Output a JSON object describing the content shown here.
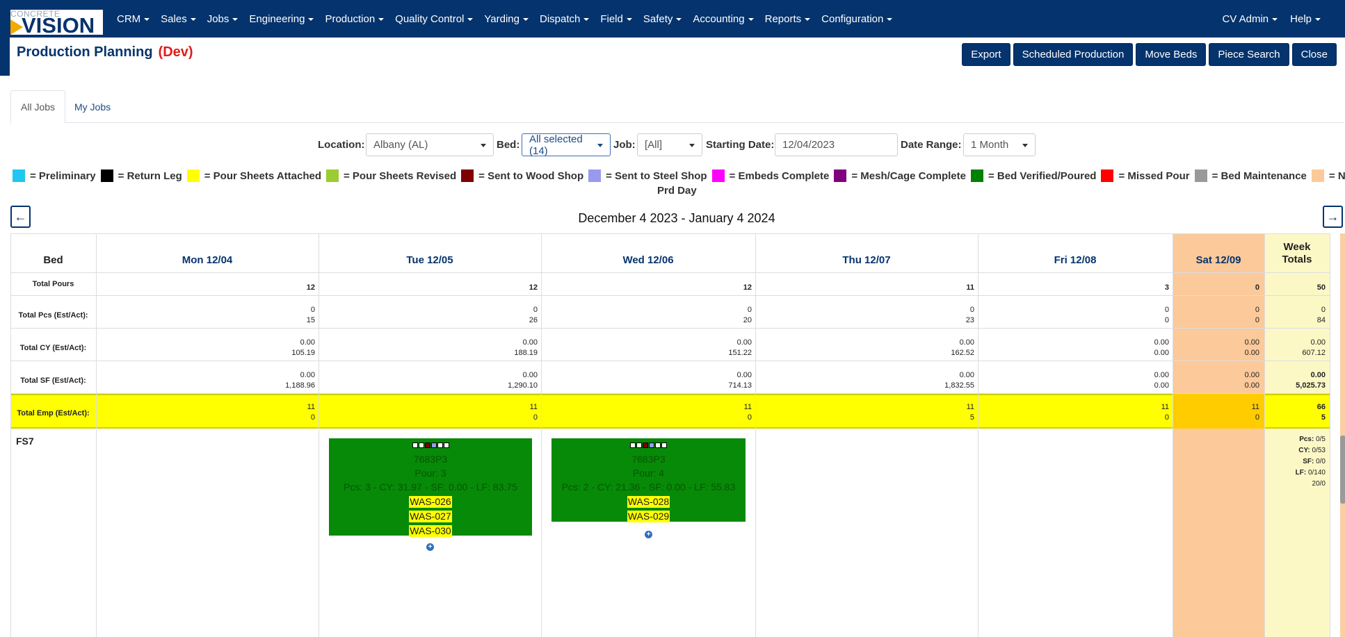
{
  "nav": {
    "logo_top": "CONCRETE",
    "logo_bottom": "VISION",
    "menu": [
      "CRM",
      "Sales",
      "Jobs",
      "Engineering",
      "Production",
      "Quality Control",
      "Yarding",
      "Dispatch",
      "Field",
      "Safety",
      "Accounting",
      "Reports",
      "Configuration"
    ],
    "right": [
      "CV Admin",
      "Help"
    ]
  },
  "header": {
    "title": "Production Planning",
    "env": "(Dev)",
    "buttons": [
      "Export",
      "Scheduled Production",
      "Move Beds",
      "Piece Search",
      "Close"
    ]
  },
  "tabs": [
    "All Jobs",
    "My Jobs"
  ],
  "filters": {
    "location_label": "Location:",
    "location_value": "Albany (AL)",
    "bed_label": "Bed:",
    "bed_value": "All selected (14)",
    "job_label": "Job:",
    "job_value": "[All]",
    "start_label": "Starting Date:",
    "start_value": "12/04/2023",
    "range_label": "Date Range:",
    "range_value": "1 Month"
  },
  "legend": [
    {
      "label": "= Preliminary",
      "color": "#1ec8ef"
    },
    {
      "label": "= Return Leg",
      "color": "#000000"
    },
    {
      "label": "= Pour Sheets Attached",
      "color": "#ffff00"
    },
    {
      "label": "= Pour Sheets Revised",
      "color": "#9acd32"
    },
    {
      "label": "= Sent to Wood Shop",
      "color": "#800000"
    },
    {
      "label": "= Sent to Steel Shop",
      "color": "#9999ee"
    },
    {
      "label": "= Embeds Complete",
      "color": "#ff00ff"
    },
    {
      "label": "= Mesh/Cage Complete",
      "color": "#800080"
    },
    {
      "label": "= Bed Verified/Poured",
      "color": "#008000"
    },
    {
      "label": "= Missed Pour",
      "color": "#ff0000"
    },
    {
      "label": "= Bed Maintenance",
      "color": "#999999"
    },
    {
      "label": "= Non",
      "color": "#fcc99a"
    }
  ],
  "legend_wrap": "Prd Day",
  "range_title": "December 4 2023 - January 4 2024",
  "grid": {
    "bed_header": "Bed",
    "days": [
      "Mon 12/04",
      "Tue 12/05",
      "Wed 12/06",
      "Thu 12/07",
      "Fri 12/08",
      "Sat 12/09"
    ],
    "week_totals_header": [
      "Week",
      "Totals"
    ],
    "rows": [
      {
        "label": "Total Pours",
        "values": [
          [
            "12"
          ],
          [
            "12"
          ],
          [
            "12"
          ],
          [
            "11"
          ],
          [
            "3"
          ],
          [
            "0"
          ]
        ],
        "total": [
          "50"
        ]
      },
      {
        "label": "Total Pcs (Est/Act):",
        "values": [
          [
            "0",
            "15"
          ],
          [
            "0",
            "26"
          ],
          [
            "0",
            "20"
          ],
          [
            "0",
            "23"
          ],
          [
            "0",
            "0"
          ],
          [
            "0",
            "0"
          ]
        ],
        "total": [
          "0",
          "84"
        ]
      },
      {
        "label": "Total CY (Est/Act):",
        "values": [
          [
            "0.00",
            "105.19"
          ],
          [
            "0.00",
            "188.19"
          ],
          [
            "0.00",
            "151.22"
          ],
          [
            "0.00",
            "162.52"
          ],
          [
            "0.00",
            "0.00"
          ],
          [
            "0.00",
            "0.00"
          ]
        ],
        "total": [
          "0.00",
          "607.12"
        ]
      },
      {
        "label": "Total SF (Est/Act):",
        "values": [
          [
            "0.00",
            "1,188.96"
          ],
          [
            "0.00",
            "1,290.10"
          ],
          [
            "0.00",
            "714.13"
          ],
          [
            "0.00",
            "1,832.55"
          ],
          [
            "0.00",
            "0.00"
          ],
          [
            "0.00",
            "0.00"
          ]
        ],
        "total": [
          "0.00",
          "5,025.73"
        ]
      },
      {
        "label": "Total Emp (Est/Act):",
        "values": [
          [
            "11",
            "0"
          ],
          [
            "11",
            "0"
          ],
          [
            "11",
            "0"
          ],
          [
            "11",
            "5"
          ],
          [
            "11",
            "0"
          ],
          [
            "11",
            "0"
          ]
        ],
        "total": [
          "66",
          "5"
        ]
      }
    ],
    "bed_name": "FS7",
    "pours": [
      {
        "job": "7683P3",
        "pour": "Pour: 3",
        "stats": "Pcs: 3 - CY: 31.97 - SF: 0.00 - LF: 83.75",
        "pieces": [
          "WAS-026",
          "WAS-027",
          "WAS-030"
        ],
        "squares": [
          "#ffffff",
          "#ffffff",
          "#800000",
          "#9999ee",
          "#ffffff",
          "#ffffff"
        ]
      },
      {
        "job": "7683P3",
        "pour": "Pour: 4",
        "stats": "Pcs: 2 - CY: 21.36 - SF: 0.00 - LF: 55.83",
        "pieces": [
          "WAS-028",
          "WAS-029"
        ],
        "squares": [
          "#ffffff",
          "#ffffff",
          "#800000",
          "#9999ee",
          "#ffffff",
          "#ffffff"
        ]
      }
    ],
    "week_summary": [
      {
        "k": "Pcs:",
        "v": "0/5"
      },
      {
        "k": "CY:",
        "v": "0/53"
      },
      {
        "k": "SF:",
        "v": "0/0"
      },
      {
        "k": "LF:",
        "v": "0/140"
      },
      {
        "k": "",
        "v": "20/0"
      }
    ]
  }
}
